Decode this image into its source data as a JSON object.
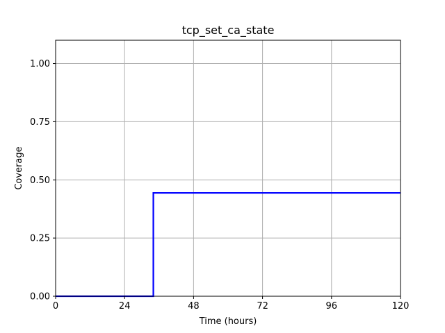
{
  "chart_data": {
    "type": "line",
    "title": "tcp_set_ca_state",
    "xlabel": "Time (hours)",
    "ylabel": "Coverage",
    "xlim": [
      0,
      120
    ],
    "ylim": [
      0,
      1.1
    ],
    "xticks": [
      0,
      24,
      48,
      72,
      96,
      120
    ],
    "xtick_labels": [
      "0",
      "24",
      "48",
      "72",
      "96",
      "120"
    ],
    "yticks": [
      0,
      0.25,
      0.5,
      0.75,
      1.0
    ],
    "ytick_labels": [
      "0.00",
      "0.25",
      "0.50",
      "0.75",
      "1.00"
    ],
    "grid": true,
    "series": [
      {
        "color": "#0000ff",
        "step": true,
        "x": [
          0,
          34,
          34,
          120
        ],
        "y": [
          0,
          0,
          0.444,
          0.444
        ]
      }
    ]
  }
}
